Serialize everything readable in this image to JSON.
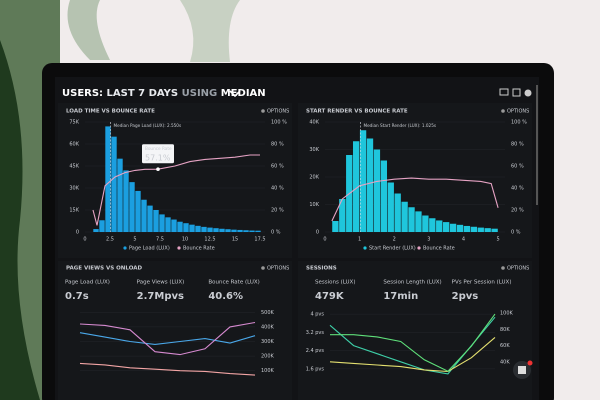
{
  "header": {
    "parts": [
      "USERS:",
      "LAST 7 DAYS",
      "USING",
      "MEDIAN"
    ]
  },
  "panels": [
    {
      "type": "histogram",
      "title": "LOAD TIME VS BOUNCE RATE",
      "options": "OPTIONS",
      "xlim": [
        0,
        18
      ],
      "xticks": [
        0,
        2.5,
        5,
        7.5,
        10,
        12.5,
        15,
        17.5
      ],
      "ylim": [
        0,
        75000
      ],
      "yticks": [
        {
          "value": 75000,
          "label": "75K"
        },
        {
          "value": 60000,
          "label": "60K"
        },
        {
          "value": 45000,
          "label": "45K"
        },
        {
          "value": 30000,
          "label": "30K"
        },
        {
          "value": 15000,
          "label": "15K"
        },
        0
      ],
      "y2lim": [
        0,
        100
      ],
      "y2ticks": [
        {
          "value": 100,
          "label": "100 %"
        },
        {
          "value": 80,
          "label": "80 %"
        },
        {
          "value": 60,
          "label": "60 %"
        },
        {
          "value": 40,
          "label": "40 %"
        },
        {
          "value": 20,
          "label": "20 %"
        },
        {
          "value": 0,
          "label": "0 %"
        }
      ],
      "bar": {
        "name": "Page Load (LUX)",
        "color": "#1b9fe0",
        "bins": [
          0.8,
          1.4,
          2.0,
          2.6,
          3.2,
          3.8,
          4.4,
          5.0,
          5.6,
          6.2,
          6.8,
          7.4,
          8.0,
          8.6,
          9.2,
          9.8,
          10.4,
          11.0,
          11.6,
          12.2,
          12.8,
          13.4,
          14.0,
          14.6,
          15.2,
          15.8,
          16.4,
          17.0,
          17.6
        ],
        "values": [
          2000,
          8000,
          72000,
          65000,
          50000,
          42000,
          34000,
          28000,
          22000,
          18000,
          15000,
          12000,
          10000,
          8500,
          7000,
          6000,
          5000,
          4200,
          3500,
          3000,
          2600,
          2200,
          1900,
          1600,
          1400,
          1200,
          1000,
          900
        ]
      },
      "line": {
        "name": "Bounce Rate",
        "color": "#e6a3c4",
        "x": [
          0.8,
          1.2,
          2,
          3,
          4,
          5,
          6,
          7.3,
          9,
          10.5,
          12,
          13.5,
          15,
          16.5,
          17.5
        ],
        "values": [
          20,
          6,
          42,
          50,
          54,
          56,
          57,
          57.1,
          60,
          64,
          66,
          67,
          68,
          70,
          70
        ]
      },
      "median": 2.55,
      "annotation": "Median Page Load (LUX): 2.550s",
      "tooltip": {
        "title": "Bounce Rate",
        "x": 7.3,
        "value": 57.1,
        "label": "57.1%"
      }
    },
    {
      "type": "histogram",
      "title": "START RENDER VS BOUNCE RATE",
      "options": "OPTIONS",
      "xlim": [
        0,
        5.2
      ],
      "xticks": [
        0,
        1,
        2,
        3,
        4,
        5
      ],
      "ylim": [
        0,
        40000
      ],
      "yticks": [
        {
          "value": 40000,
          "label": "40K"
        },
        {
          "value": 30000,
          "label": "30K"
        },
        {
          "value": 20000,
          "label": "20K"
        },
        {
          "value": 10000,
          "label": "10K"
        },
        0
      ],
      "y2lim": [
        0,
        100
      ],
      "y2ticks": [
        {
          "value": 100,
          "label": "100 %"
        },
        {
          "value": 80,
          "label": "80 %"
        },
        {
          "value": 60,
          "label": "60 %"
        },
        {
          "value": 40,
          "label": "40 %"
        },
        {
          "value": 20,
          "label": "20 %"
        },
        {
          "value": 0,
          "label": "0 %"
        }
      ],
      "bar": {
        "name": "Start Render (LUX)",
        "color": "#1fc6dc",
        "bins": [
          0.2,
          0.4,
          0.6,
          0.8,
          1.0,
          1.2,
          1.4,
          1.6,
          1.8,
          2.0,
          2.2,
          2.4,
          2.6,
          2.8,
          3.0,
          3.2,
          3.4,
          3.6,
          3.8,
          4.0,
          4.2,
          4.4,
          4.6,
          4.8,
          5.0
        ],
        "values": [
          4000,
          12000,
          28000,
          33000,
          37000,
          34000,
          30000,
          26000,
          18000,
          14000,
          11000,
          9000,
          7500,
          6000,
          5000,
          4200,
          3600,
          3000,
          2600,
          2200,
          1900,
          1600,
          1400,
          1200
        ]
      },
      "line": {
        "name": "Bounce Rate",
        "color": "#e6a3c4",
        "x": [
          0.2,
          0.5,
          1,
          1.5,
          2,
          2.5,
          3,
          3.5,
          4,
          4.5,
          4.8,
          5
        ],
        "values": [
          10,
          30,
          42,
          46,
          48,
          49,
          48,
          48,
          47,
          46,
          44,
          22
        ]
      },
      "median": 1.025,
      "annotation": "Median Start Render (LUX): 1.025s"
    },
    {
      "type": "lines",
      "title": "PAGE VIEWS VS ONLOAD",
      "options": "OPTIONS",
      "ylim": [
        50000,
        550000
      ],
      "yticks": [
        {
          "value": 500000,
          "label": "500K"
        },
        {
          "value": 400000,
          "label": "400K"
        },
        {
          "value": 300000,
          "label": "300K"
        },
        {
          "value": 200000,
          "label": "200K"
        },
        {
          "value": 100000,
          "label": "100K"
        }
      ],
      "metrics": [
        {
          "label": "Page Load (LUX)",
          "value": "0.7s",
          "color": "#4aa8ea",
          "values": [
            360000,
            330000,
            300000,
            280000,
            300000,
            320000,
            290000,
            340000
          ]
        },
        {
          "label": "Page Views (LUX)",
          "value": "2.7Mpvs",
          "color": "#d68ad0",
          "values": [
            420000,
            410000,
            380000,
            230000,
            210000,
            250000,
            400000,
            430000
          ]
        },
        {
          "label": "Bounce Rate (LUX)",
          "value": "40.6%",
          "color": "#f3a5a5",
          "values": [
            150000,
            140000,
            120000,
            110000,
            100000,
            95000,
            80000,
            70000
          ]
        }
      ]
    },
    {
      "type": "lines",
      "title": "SESSIONS",
      "options": "OPTIONS",
      "ylim": [
        1.2,
        4.4
      ],
      "yticks": [
        {
          "value": 4,
          "label": "4 pvs"
        },
        {
          "value": 3.2,
          "label": "3.2 pvs"
        },
        {
          "value": 2.4,
          "label": "2.4 pvs"
        },
        {
          "value": 1.6,
          "label": "1.6 pvs"
        }
      ],
      "y2lim": [
        20000,
        110000
      ],
      "y2ticks": [
        {
          "value": 100000,
          "label": "100K"
        },
        {
          "value": 80000,
          "label": "80K"
        },
        {
          "value": 60000,
          "label": "60K"
        },
        {
          "value": 40000,
          "label": "40K"
        }
      ],
      "metrics": [
        {
          "label": "Sessions (LUX)",
          "value": "479K",
          "color": "#3ecfa8",
          "axis": "y2",
          "values": [
            85000,
            60000,
            50000,
            40000,
            30000,
            25000,
            60000,
            95000
          ]
        },
        {
          "label": "Session Length (LUX)",
          "value": "17min",
          "color": "#e4e070",
          "axis": "y2",
          "values": [
            40000,
            38000,
            36000,
            34000,
            30000,
            28000,
            45000,
            70000
          ]
        },
        {
          "label": "PVs Per Session (LUX)",
          "value": "2pvs",
          "color": "#5fe07a",
          "values": [
            3.1,
            3.1,
            3.0,
            2.8,
            2.0,
            1.5,
            2.6,
            4.0
          ]
        }
      ]
    }
  ]
}
